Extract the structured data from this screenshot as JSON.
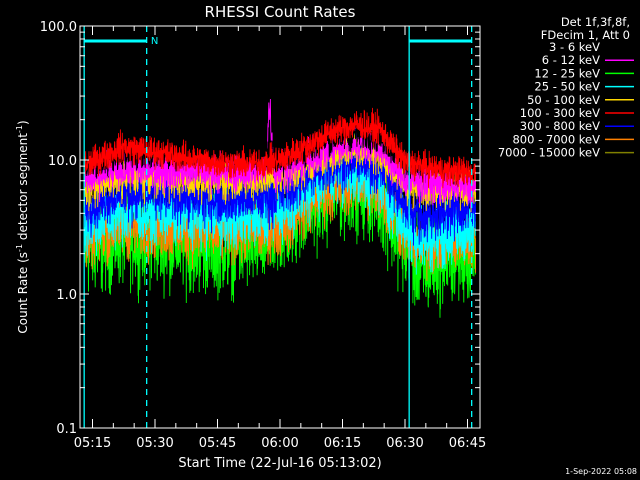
{
  "chart_data": {
    "type": "line",
    "title": "RHESSI Count Rates",
    "xlabel": "Start Time (22-Jul-16 05:13:02)",
    "ylabel_main": "Count Rate (s",
    "ylabel_sup": "-1",
    "ylabel_tail": " detector segment",
    "ylabel_sup2": "-1",
    "ylabel_end": ")",
    "yscale": "log",
    "ylim": [
      0.1,
      100.0
    ],
    "y_ticks": [
      {
        "value": 0.1,
        "label": "0.1"
      },
      {
        "value": 1.0,
        "label": "1.0"
      },
      {
        "value": 10.0,
        "label": "10.0"
      },
      {
        "value": 100.0,
        "label": "100.0"
      }
    ],
    "xlim_minutes": [
      312.0,
      408.0
    ],
    "x_ticks": [
      {
        "value": 315,
        "label": "05:15"
      },
      {
        "value": 330,
        "label": "05:30"
      },
      {
        "value": 345,
        "label": "05:45"
      },
      {
        "value": 360,
        "label": "06:00"
      },
      {
        "value": 375,
        "label": "06:15"
      },
      {
        "value": 390,
        "label": "06:30"
      },
      {
        "value": 405,
        "label": "06:45"
      }
    ],
    "night_markers": {
      "color": "#00ffff",
      "solid_lines": [
        313.0,
        391.0
      ],
      "dashed_lines": [
        328.0,
        406.0
      ],
      "bars": [
        [
          313.0,
          328.0
        ],
        [
          391.0,
          406.0
        ]
      ],
      "label": "N",
      "label_at": 329.0
    },
    "legend_header": [
      "Det 1f,3f,8f,",
      "FDecim 1, Att 0"
    ],
    "series": [
      {
        "name": "3 - 6 keV",
        "color": "#000000",
        "key": [
          [
            313,
            9.5
          ],
          [
            322,
            11
          ],
          [
            330,
            11.5
          ],
          [
            340,
            11.5
          ],
          [
            350,
            11.5
          ],
          [
            356,
            11
          ],
          [
            360,
            10.5
          ],
          [
            366,
            12
          ],
          [
            372,
            14.5
          ],
          [
            378,
            16
          ],
          [
            384,
            15
          ],
          [
            390,
            10
          ],
          [
            400,
            9
          ],
          [
            408,
            8.5
          ]
        ],
        "noise": 0.06
      },
      {
        "name": "6 - 12 keV",
        "color": "#ff00ff",
        "key": [
          [
            313,
            7
          ],
          [
            322,
            8.5
          ],
          [
            330,
            8.5
          ],
          [
            340,
            8.2
          ],
          [
            350,
            8.2
          ],
          [
            356,
            8.2
          ],
          [
            360,
            8.5
          ],
          [
            366,
            10
          ],
          [
            372,
            12
          ],
          [
            378,
            13.5
          ],
          [
            384,
            12.5
          ],
          [
            390,
            7
          ],
          [
            400,
            6.5
          ],
          [
            408,
            6.2
          ]
        ],
        "noise": 0.07,
        "spike": {
          "at": 357.5,
          "peak": 24,
          "width": 0.9
        }
      },
      {
        "name": "12 - 25 keV",
        "color": "#00ff00",
        "key": [
          [
            313,
            2.1
          ],
          [
            322,
            2.6
          ],
          [
            330,
            2.6
          ],
          [
            340,
            2.3
          ],
          [
            350,
            2.3
          ],
          [
            356,
            2.5
          ],
          [
            360,
            2.9
          ],
          [
            366,
            4.2
          ],
          [
            372,
            5.8
          ],
          [
            378,
            6.5
          ],
          [
            384,
            5.2
          ],
          [
            390,
            2.2
          ],
          [
            394,
            1.5
          ],
          [
            400,
            1.9
          ],
          [
            408,
            2.0
          ]
        ],
        "noise": 0.17
      },
      {
        "name": "25 - 50 keV",
        "color": "#00ffff",
        "key": [
          [
            313,
            3.3
          ],
          [
            322,
            4.2
          ],
          [
            330,
            4.2
          ],
          [
            340,
            3.8
          ],
          [
            350,
            3.8
          ],
          [
            356,
            4.0
          ],
          [
            360,
            4.3
          ],
          [
            366,
            6
          ],
          [
            372,
            7.8
          ],
          [
            378,
            8.2
          ],
          [
            384,
            7
          ],
          [
            390,
            3.3
          ],
          [
            394,
            2.6
          ],
          [
            400,
            2.9
          ],
          [
            408,
            3.1
          ]
        ],
        "noise": 0.12
      },
      {
        "name": "50 - 100 keV",
        "color": "#ffd700",
        "key": [
          [
            313,
            6.2
          ],
          [
            322,
            7.4
          ],
          [
            330,
            7.4
          ],
          [
            340,
            7
          ],
          [
            350,
            7
          ],
          [
            356,
            7.2
          ],
          [
            360,
            7.5
          ],
          [
            366,
            9
          ],
          [
            372,
            11
          ],
          [
            378,
            12.5
          ],
          [
            384,
            11
          ],
          [
            390,
            6.4
          ],
          [
            400,
            6.2
          ],
          [
            408,
            6.0
          ]
        ],
        "noise": 0.07
      },
      {
        "name": "100 - 300 keV",
        "color": "#ff0000",
        "key": [
          [
            313,
            9
          ],
          [
            322,
            12.5
          ],
          [
            330,
            11.5
          ],
          [
            340,
            10
          ],
          [
            350,
            9.3
          ],
          [
            356,
            9.5
          ],
          [
            360,
            10
          ],
          [
            366,
            12.5
          ],
          [
            372,
            16
          ],
          [
            378,
            18.5
          ],
          [
            384,
            17
          ],
          [
            390,
            9.5
          ],
          [
            400,
            8.3
          ],
          [
            408,
            8.0
          ]
        ],
        "noise": 0.055
      },
      {
        "name": "300 - 800 keV",
        "color": "#0000ff",
        "key": [
          [
            313,
            4.6
          ],
          [
            322,
            5.8
          ],
          [
            330,
            5.8
          ],
          [
            340,
            5.3
          ],
          [
            350,
            5.2
          ],
          [
            356,
            5.3
          ],
          [
            360,
            5.7
          ],
          [
            366,
            7.5
          ],
          [
            372,
            9.5
          ],
          [
            378,
            10.3
          ],
          [
            384,
            9
          ],
          [
            390,
            4.6
          ],
          [
            394,
            3.8
          ],
          [
            400,
            4.3
          ],
          [
            408,
            4.4
          ]
        ],
        "noise": 0.1
      },
      {
        "name": "800 - 7000 keV",
        "color": "#ff8000",
        "key": [
          [
            313,
            2.7
          ],
          [
            322,
            3.3
          ],
          [
            330,
            3.2
          ],
          [
            340,
            3.0
          ],
          [
            350,
            3.0
          ],
          [
            356,
            3.1
          ],
          [
            360,
            3.4
          ],
          [
            366,
            4.8
          ],
          [
            372,
            6.3
          ],
          [
            378,
            7
          ],
          [
            384,
            6
          ],
          [
            390,
            2.9
          ],
          [
            394,
            2.3
          ],
          [
            400,
            2.6
          ],
          [
            408,
            2.7
          ]
        ],
        "noise": 0.12
      },
      {
        "name": "7000 - 15000 keV",
        "color": "#808000",
        "key": [
          [
            313,
            2.6
          ],
          [
            408,
            2.6
          ]
        ],
        "noise": 0.0,
        "hidden": true
      }
    ],
    "timestamp": "1-Sep-2022 05:08"
  }
}
